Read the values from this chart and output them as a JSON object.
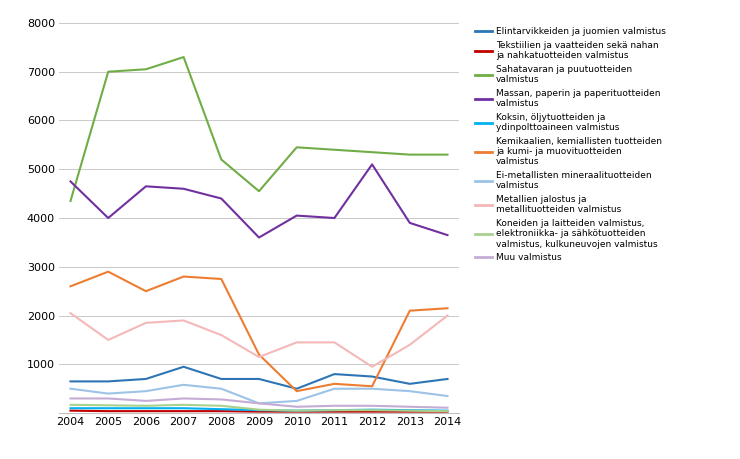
{
  "years": [
    2004,
    2005,
    2006,
    2007,
    2008,
    2009,
    2010,
    2011,
    2012,
    2013,
    2014
  ],
  "series": [
    {
      "label": "Elintarvikkeiden ja juomien valmistus",
      "color": "#2e75b6",
      "data": [
        650,
        650,
        700,
        950,
        700,
        700,
        500,
        800,
        750,
        600,
        700
      ]
    },
    {
      "label": "Tekstiilien ja vaatteiden sekä nahan\nja nahkatuotteiden valmistus",
      "color": "#c00000",
      "data": [
        50,
        40,
        40,
        40,
        40,
        30,
        30,
        30,
        30,
        30,
        30
      ]
    },
    {
      "label": "Sahatavaran ja puutuotteiden\nvalmistus",
      "color": "#70ad47",
      "data": [
        4350,
        7000,
        7050,
        7300,
        5200,
        4550,
        5450,
        5400,
        5350,
        5300,
        5300
      ]
    },
    {
      "label": "Massan, paperin ja paperituotteiden\nvalmistus",
      "color": "#7030a0",
      "data": [
        4750,
        4000,
        4650,
        4600,
        4400,
        3600,
        4050,
        4000,
        5100,
        3900,
        3650
      ]
    },
    {
      "label": "Koksin, öljytuotteiden ja\nydinpolttoaineen valmistus",
      "color": "#00b0f0",
      "data": [
        100,
        100,
        100,
        100,
        80,
        60,
        50,
        60,
        70,
        60,
        50
      ]
    },
    {
      "label": "Kemikaalien, kemiallisten tuotteiden\nja kumi- ja muovituotteiden\nvalmistus",
      "color": "#ed7d31",
      "data": [
        2600,
        2900,
        2500,
        2800,
        2750,
        1200,
        450,
        600,
        550,
        2100,
        2150
      ]
    },
    {
      "label": "Ei-metallisten mineraalituotteiden\nvalmistus",
      "color": "#9dc3e6",
      "data": [
        500,
        400,
        450,
        580,
        500,
        200,
        250,
        500,
        500,
        450,
        350
      ]
    },
    {
      "label": "Metallien jalostus ja\nmetallituotteiden valmistus",
      "color": "#f4b8b8",
      "data": [
        2050,
        1500,
        1850,
        1900,
        1600,
        1150,
        1450,
        1450,
        950,
        1400,
        2000
      ]
    },
    {
      "label": "Koneiden ja laitteiden valmistus,\nelektroniikka- ja sähkötuotteiden\nvalmistus, kulkuneuvojen valmistus",
      "color": "#a9d18e",
      "data": [
        170,
        160,
        150,
        170,
        150,
        70,
        50,
        60,
        60,
        50,
        40
      ]
    },
    {
      "label": "Muu valmistus",
      "color": "#c5acd4",
      "data": [
        300,
        300,
        250,
        300,
        280,
        200,
        130,
        150,
        150,
        130,
        110
      ]
    }
  ],
  "ylim": [
    0,
    8000
  ],
  "yticks": [
    0,
    1000,
    2000,
    3000,
    4000,
    5000,
    6000,
    7000,
    8000
  ],
  "background_color": "#ffffff",
  "grid_color": "#c0c0c0"
}
